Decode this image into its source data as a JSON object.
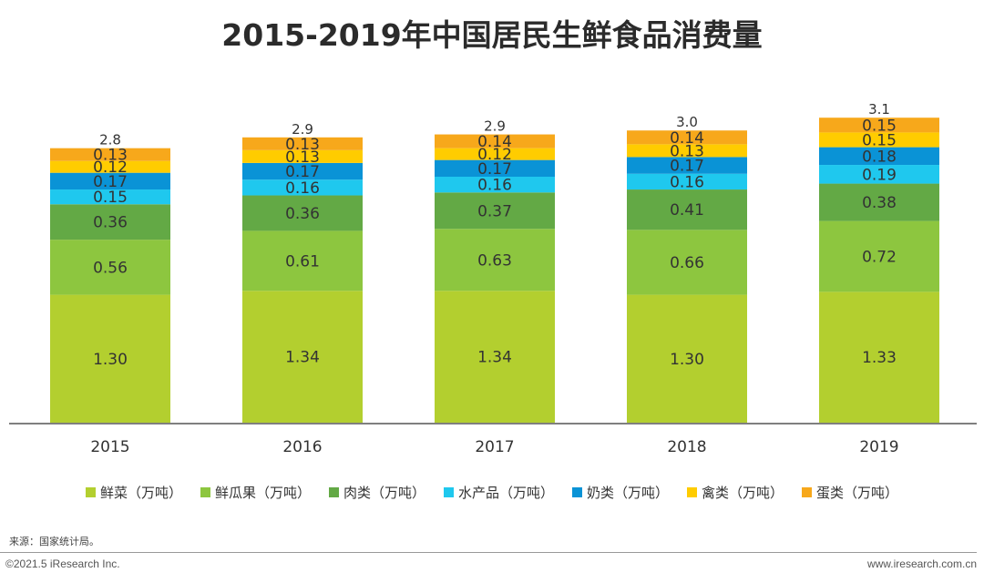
{
  "header": {
    "title": "2015-2019年中国居民生鲜食品消费量"
  },
  "chart_data": {
    "type": "bar",
    "stacked": true,
    "title": "2015-2019年中国居民生鲜食品消费量",
    "categories": [
      "2015",
      "2016",
      "2017",
      "2018",
      "2019"
    ],
    "series": [
      {
        "name": "鲜菜（万吨）",
        "color": "#b3cf2f",
        "values": [
          1.3,
          1.34,
          1.34,
          1.3,
          1.33
        ],
        "labels": [
          "1.30",
          "1.34",
          "1.34",
          "1.30",
          "1.33"
        ]
      },
      {
        "name": "鲜瓜果（万吨）",
        "color": "#8dc63f",
        "values": [
          0.56,
          0.61,
          0.63,
          0.66,
          0.72
        ],
        "labels": [
          "0.56",
          "0.61",
          "0.63",
          "0.66",
          "0.72"
        ]
      },
      {
        "name": "肉类（万吨）",
        "color": "#63a945",
        "values": [
          0.36,
          0.36,
          0.37,
          0.41,
          0.38
        ],
        "labels": [
          "0.36",
          "0.36",
          "0.37",
          "0.41",
          "0.38"
        ]
      },
      {
        "name": "水产品（万吨）",
        "color": "#1fc8ee",
        "values": [
          0.15,
          0.16,
          0.16,
          0.16,
          0.19
        ],
        "labels": [
          "0.15",
          "0.16",
          "0.16",
          "0.16",
          "0.19"
        ]
      },
      {
        "name": "奶类（万吨）",
        "color": "#0a93d6",
        "values": [
          0.17,
          0.17,
          0.17,
          0.17,
          0.18
        ],
        "labels": [
          "0.17",
          "0.17",
          "0.17",
          "0.17",
          "0.18"
        ]
      },
      {
        "name": "禽类（万吨）",
        "color": "#ffcc00",
        "values": [
          0.12,
          0.13,
          0.12,
          0.13,
          0.15
        ],
        "labels": [
          "0.12",
          "0.13",
          "0.12",
          "0.13",
          "0.15"
        ]
      },
      {
        "name": "蛋类（万吨）",
        "color": "#f7a81b",
        "values": [
          0.13,
          0.13,
          0.14,
          0.14,
          0.15
        ],
        "labels": [
          "0.13",
          "0.13",
          "0.14",
          "0.14",
          "0.15"
        ]
      }
    ],
    "totals": [
      "2.8",
      "2.9",
      "2.9",
      "3.0",
      "3.1"
    ],
    "ylim": [
      0,
      3.1
    ],
    "xlabel": "",
    "ylabel": "",
    "legend_position": "bottom",
    "grid": false
  },
  "footer": {
    "source": "来源：国家统计局。",
    "copyright": "©2021.5 iResearch Inc.",
    "website": "www.iresearch.com.cn"
  }
}
